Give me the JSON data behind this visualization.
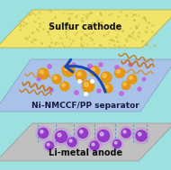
{
  "bg_color": "#9de0e0",
  "sulfur_color": "#f0e46a",
  "sulfur_dot_color": "#c8b840",
  "separator_color": "#aabfe8",
  "anode_color": "#c0c0c0",
  "anode_edge_color": "#a0a0a0",
  "sulfur_label": "Sulfur cathode",
  "separator_label": "Ni-NMCCF/PP separator",
  "anode_label": "Li-metal anode",
  "label_fontsize": 6.5,
  "ni_color": "#e8960a",
  "ni_highlight": "#f8d060",
  "li_color": "#9030c8",
  "li_glow": "#c070f0",
  "arrow_color": "#1848b8",
  "dashed_color": "#5090c8",
  "small_li_color": "#c060e0",
  "fiber_color": "#c87010",
  "fiber_color2": "#d89030",
  "bond_color": "#888888"
}
